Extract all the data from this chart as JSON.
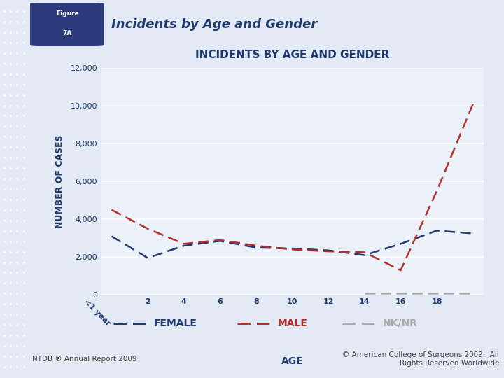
{
  "title": "INCIDENTS BY AGE AND GENDER",
  "header_title": "Incidents by Age and Gender",
  "figure_label": "Figure\n7A",
  "xlabel": "AGE",
  "ylabel": "NUMBER OF CASES",
  "x_labels": [
    "<1 year",
    "2",
    "4",
    "6",
    "8",
    "10",
    "12",
    "14",
    "16",
    "18",
    ""
  ],
  "female_data": [
    3100,
    1950,
    2600,
    2850,
    2500,
    2450,
    2350,
    2100,
    2700,
    3400,
    3250
  ],
  "male_data": [
    4500,
    3500,
    2700,
    2900,
    2600,
    2400,
    2300,
    2250,
    1300,
    5500,
    10100
  ],
  "nknr_data": [
    0,
    0,
    0,
    0,
    0,
    0,
    0,
    100,
    100,
    100,
    100
  ],
  "female_color": "#1F3A6E",
  "male_color": "#B03030",
  "nknr_color": "#AAAAAA",
  "title_color": "#1F3A6E",
  "header_color": "#1F3A6E",
  "ylim": [
    0,
    12000
  ],
  "yticks": [
    0,
    2000,
    4000,
    6000,
    8000,
    10000,
    12000
  ],
  "footer_left": "NTDB ® Annual Report 2009",
  "footer_right": "© American College of Surgeons 2009.  All\nRights Reserved Worldwide",
  "legend_female": "FEMALE",
  "legend_male": "MALE",
  "legend_nknr": "NK/NR",
  "bg_color": "#E4EAF5",
  "dot_strip_color": "#C8D2E8",
  "plot_bg_color": "#ECF0F8",
  "white_color": "#FFFFFF"
}
